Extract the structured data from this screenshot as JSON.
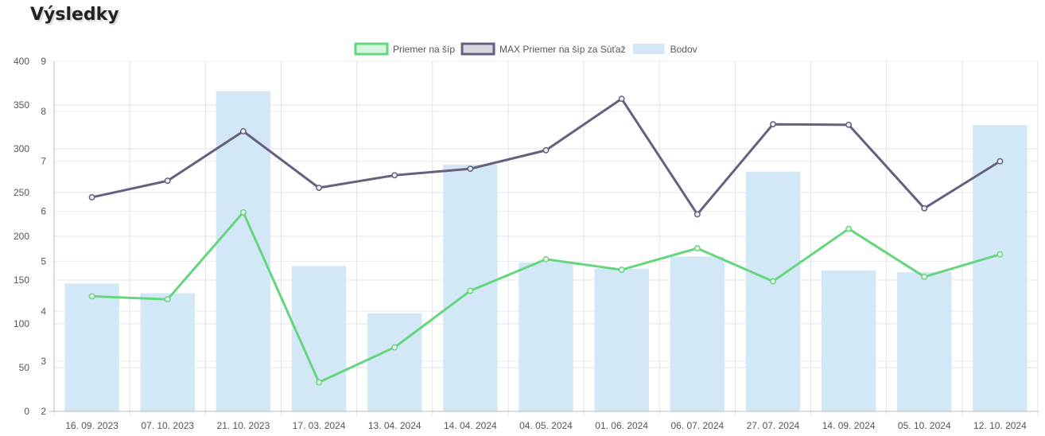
{
  "header": {
    "title": "Výsledky"
  },
  "chart_data": {
    "type": "bar",
    "categories": [
      "16. 09. 2023",
      "07. 10. 2023",
      "21. 10. 2023",
      "17. 03. 2024",
      "13. 04. 2024",
      "14. 04. 2024",
      "04. 05. 2024",
      "01. 06. 2024",
      "06. 07. 2024",
      "27. 07. 2024",
      "14. 09. 2024",
      "05. 10. 2024",
      "12. 10. 2024"
    ],
    "series": [
      {
        "name": "Priemer na šíp",
        "type": "line",
        "axis": "y_right",
        "color": "#65d67e",
        "values": [
          4.3,
          4.24,
          5.98,
          2.58,
          3.28,
          4.41,
          5.04,
          4.83,
          5.26,
          4.6,
          5.65,
          4.69,
          5.14
        ]
      },
      {
        "name": "MAX Priemer na šíp za Súťaž",
        "type": "line",
        "axis": "y_right",
        "color": "#65607f",
        "values": [
          6.28,
          6.61,
          7.6,
          6.47,
          6.72,
          6.85,
          7.22,
          8.25,
          5.94,
          7.74,
          7.73,
          6.06,
          7.0
        ]
      },
      {
        "name": "Bodov",
        "type": "bar",
        "axis": "y_left",
        "color": "#d3e8f7",
        "values": [
          146,
          135,
          366,
          166,
          112,
          282,
          170,
          163,
          177,
          274,
          161,
          159,
          327
        ]
      }
    ],
    "y_left": {
      "min": 0,
      "max": 400,
      "ticks": [
        0,
        50,
        100,
        150,
        200,
        250,
        300,
        350,
        400
      ]
    },
    "y_right": {
      "min": 2,
      "max": 9,
      "ticks": [
        2,
        3,
        4,
        5,
        6,
        7,
        8,
        9
      ]
    },
    "legend_position": "top",
    "grid": true
  }
}
